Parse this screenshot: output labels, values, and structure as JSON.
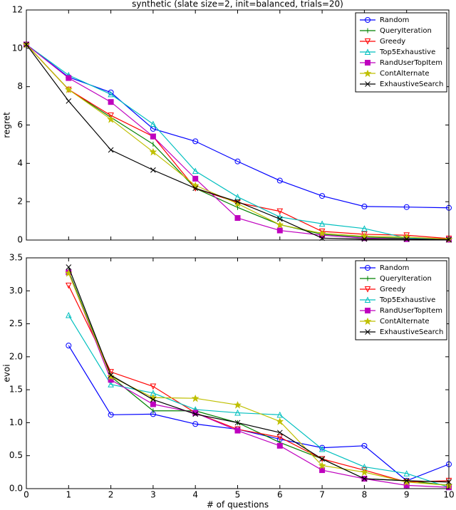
{
  "chart_data": [
    {
      "type": "line",
      "title": "synthetic (slate size=2, init=balanced, trials=20)",
      "ylabel": "regret",
      "x": [
        0,
        1,
        2,
        3,
        4,
        5,
        6,
        7,
        8,
        9,
        10
      ],
      "xlim": [
        0,
        10
      ],
      "xticks": [
        0,
        1,
        2,
        3,
        4,
        5,
        6,
        7,
        8,
        9,
        10
      ],
      "ylim": [
        0,
        12
      ],
      "yticks": [
        0,
        2,
        4,
        6,
        8,
        10,
        12
      ],
      "legend": "upper right",
      "series": [
        {
          "name": "Random",
          "color": "#0000ff",
          "marker": "o",
          "values": [
            10.2,
            8.5,
            7.7,
            5.8,
            5.15,
            4.1,
            3.1,
            2.3,
            1.75,
            1.72,
            1.68
          ]
        },
        {
          "name": "QueryIteration",
          "color": "#008000",
          "marker": "|",
          "values": [
            10.2,
            7.85,
            6.4,
            5.0,
            2.7,
            1.7,
            0.8,
            0.3,
            0.15,
            0.1,
            0.05
          ]
        },
        {
          "name": "Greedy",
          "color": "#ff0000",
          "marker": "v",
          "values": [
            10.2,
            7.85,
            6.5,
            5.4,
            2.7,
            1.95,
            1.5,
            0.45,
            0.3,
            0.25,
            0.08
          ]
        },
        {
          "name": "Top5Exhaustive",
          "color": "#00bfbf",
          "marker": "^",
          "values": [
            10.2,
            8.6,
            7.6,
            6.05,
            3.6,
            2.25,
            1.2,
            0.85,
            0.6,
            0.1,
            0.02
          ]
        },
        {
          "name": "RandUserTopItem",
          "color": "#bf00bf",
          "marker": "s",
          "values": [
            10.2,
            8.45,
            7.2,
            5.4,
            3.2,
            1.15,
            0.5,
            0.25,
            0.1,
            0.05,
            0.02
          ]
        },
        {
          "name": "ContAlternate",
          "color": "#bfbf00",
          "marker": "*",
          "values": [
            10.2,
            7.85,
            6.3,
            4.6,
            2.85,
            1.9,
            0.8,
            0.35,
            0.2,
            0.15,
            0.05
          ]
        },
        {
          "name": "ExhaustiveSearch",
          "color": "#000000",
          "marker": "x",
          "values": [
            10.2,
            7.25,
            4.7,
            3.65,
            2.7,
            2.0,
            1.1,
            0.1,
            0.05,
            0.05,
            0.02
          ]
        }
      ]
    },
    {
      "type": "line",
      "ylabel": "evoi",
      "xlabel": "# of questions",
      "x": [
        1,
        2,
        3,
        4,
        5,
        6,
        7,
        8,
        9,
        10
      ],
      "xlim": [
        0,
        10
      ],
      "xticks": [
        0,
        1,
        2,
        3,
        4,
        5,
        6,
        7,
        8,
        9,
        10
      ],
      "ylim": [
        0,
        3.5
      ],
      "yticks": [
        {
          "value": 0,
          "label": "0.0"
        },
        0.5,
        {
          "value": 1,
          "label": "1.0"
        },
        1.5,
        {
          "value": 2,
          "label": "2.0"
        },
        2.5,
        {
          "value": 3,
          "label": "3.0"
        },
        3.5
      ],
      "legend": "upper right",
      "series": [
        {
          "name": "Random",
          "color": "#0000ff",
          "marker": "o",
          "values": [
            2.17,
            1.12,
            1.13,
            0.98,
            0.9,
            0.75,
            0.62,
            0.65,
            0.12,
            0.37
          ]
        },
        {
          "name": "QueryIteration",
          "color": "#008000",
          "marker": "|",
          "values": [
            3.3,
            1.7,
            1.18,
            1.18,
            1.0,
            0.7,
            0.45,
            0.15,
            0.12,
            0.05
          ]
        },
        {
          "name": "Greedy",
          "color": "#ff0000",
          "marker": "v",
          "values": [
            3.08,
            1.77,
            1.55,
            1.15,
            0.9,
            0.78,
            0.45,
            0.28,
            0.1,
            0.12
          ]
        },
        {
          "name": "Top5Exhaustive",
          "color": "#00bfbf",
          "marker": "^",
          "values": [
            2.63,
            1.58,
            1.45,
            1.2,
            1.15,
            1.12,
            0.6,
            0.33,
            0.23,
            0.02
          ]
        },
        {
          "name": "RandUserTopItem",
          "color": "#bf00bf",
          "marker": "s",
          "values": [
            3.28,
            1.65,
            1.28,
            1.15,
            0.88,
            0.65,
            0.28,
            0.15,
            0.05,
            0.02
          ]
        },
        {
          "name": "ContAlternate",
          "color": "#bfbf00",
          "marker": "*",
          "values": [
            3.27,
            1.7,
            1.38,
            1.37,
            1.27,
            1.02,
            0.35,
            0.25,
            0.1,
            0.05
          ]
        },
        {
          "name": "ExhaustiveSearch",
          "color": "#000000",
          "marker": "x",
          "values": [
            3.36,
            1.72,
            1.35,
            1.13,
            1.0,
            0.85,
            0.45,
            0.15,
            0.12,
            0.1
          ]
        }
      ]
    }
  ]
}
